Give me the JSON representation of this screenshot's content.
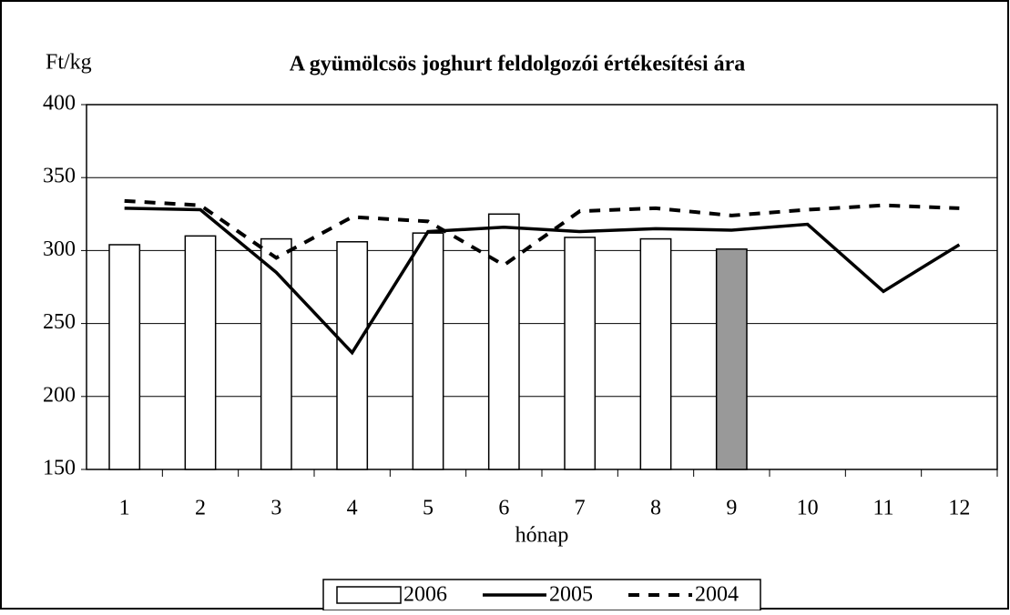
{
  "chart_data": {
    "type": "bar-line",
    "title": "A gyümölcsös joghurt feldolgozói értékesítési ára",
    "y_label": "Ft/kg",
    "x_label": "hónap",
    "categories": [
      "1",
      "2",
      "3",
      "4",
      "5",
      "6",
      "7",
      "8",
      "9",
      "10",
      "11",
      "12"
    ],
    "series": [
      {
        "name": "2006",
        "type": "bar",
        "color": "#ffffff",
        "colors": [
          "#ffffff",
          "#ffffff",
          "#ffffff",
          "#ffffff",
          "#ffffff",
          "#ffffff",
          "#ffffff",
          "#ffffff",
          "#999999",
          null,
          null,
          null
        ],
        "values": [
          304,
          310,
          308,
          306,
          312,
          325,
          309,
          308,
          301,
          null,
          null,
          null
        ]
      },
      {
        "name": "2005",
        "type": "line",
        "color": "#000000",
        "dash": false,
        "values": [
          329,
          328,
          285,
          230,
          313,
          316,
          313,
          315,
          314,
          318,
          272,
          304
        ]
      },
      {
        "name": "2004",
        "type": "line",
        "color": "#000000",
        "dash": true,
        "values": [
          334,
          331,
          295,
          323,
          320,
          290,
          327,
          329,
          324,
          328,
          331,
          329
        ]
      }
    ],
    "ylim": [
      150,
      400
    ],
    "yticks": [
      150,
      200,
      250,
      300,
      350,
      400
    ],
    "grid": true,
    "legend": "bottom"
  }
}
